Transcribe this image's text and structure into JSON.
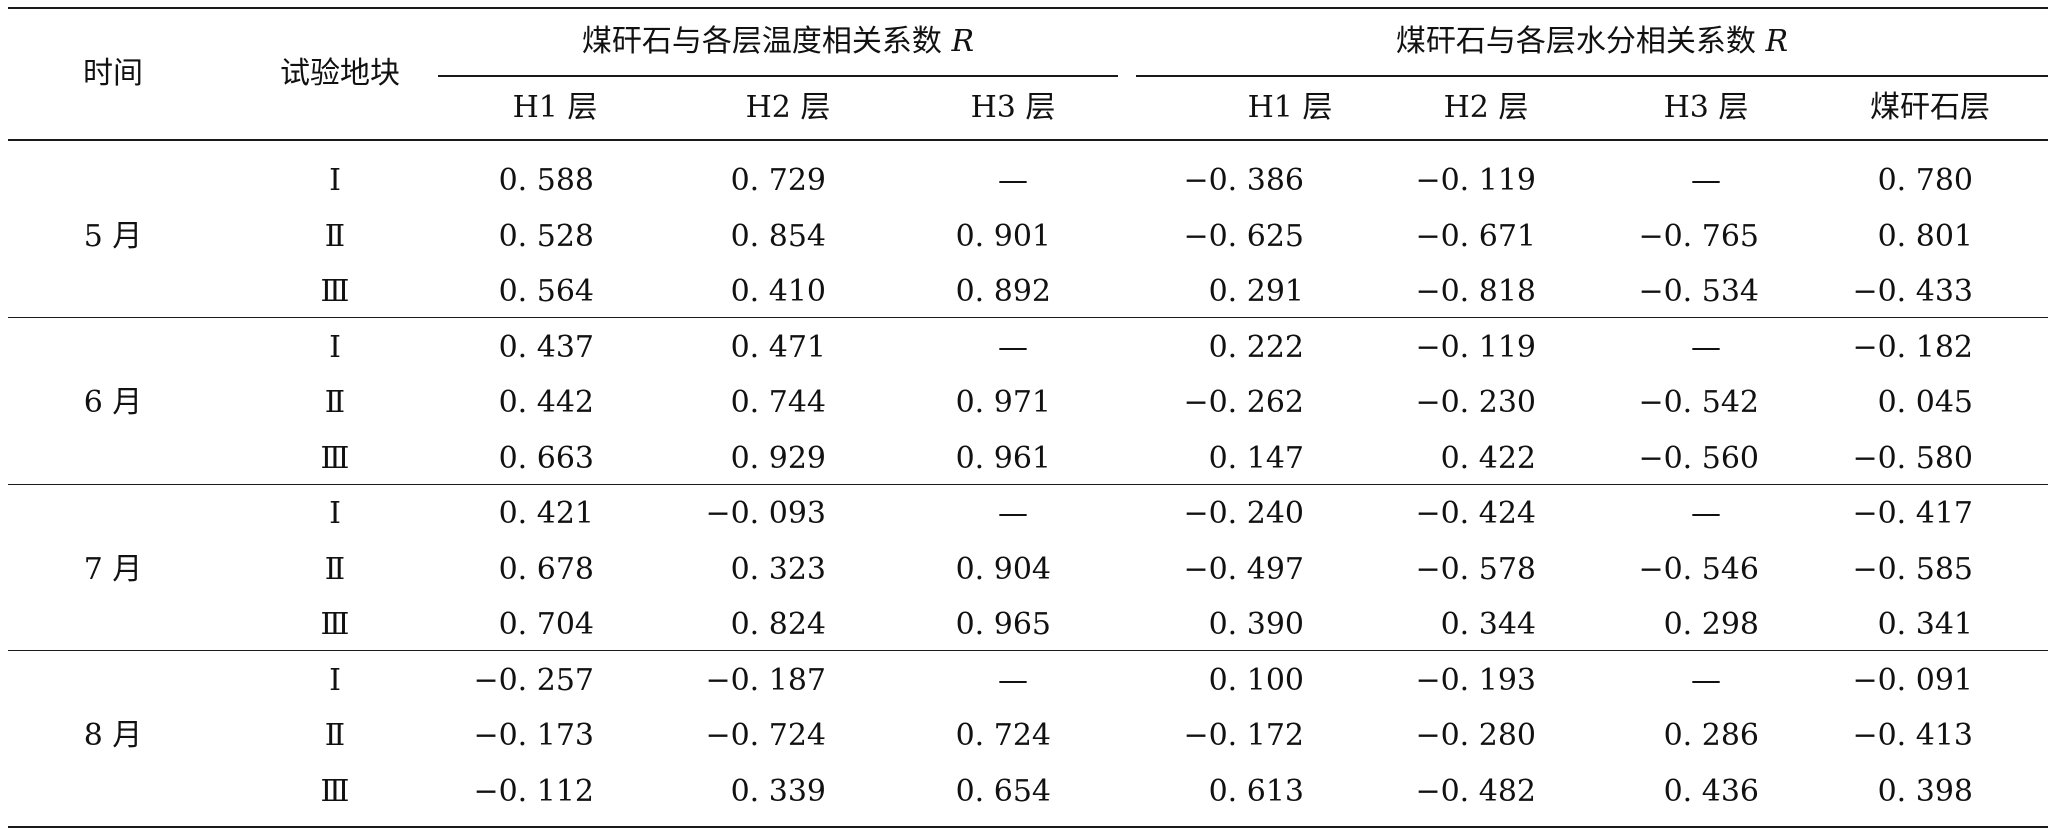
{
  "header": {
    "time": "时间",
    "plot": "试验地块",
    "temp_group": "煤矸石与各层温度相关系数",
    "water_group": "煤矸石与各层水分相关系数",
    "r_symbol": "R",
    "temp_cols": [
      "H1 层",
      "H2 层",
      "H3 层"
    ],
    "water_cols": [
      "H1 层",
      "H2 层",
      "H3 层",
      "煤矸石层"
    ]
  },
  "groups": [
    {
      "month": "5 月",
      "rows": [
        {
          "plot": "Ⅰ",
          "values": [
            "0. 588",
            "0. 729",
            "—",
            "−0. 386",
            "−0. 119",
            "—",
            "0. 780"
          ]
        },
        {
          "plot": "Ⅱ",
          "values": [
            "0. 528",
            "0. 854",
            "0. 901",
            "−0. 625",
            "−0. 671",
            "−0. 765",
            "0. 801"
          ]
        },
        {
          "plot": "Ⅲ",
          "values": [
            "0. 564",
            "0. 410",
            "0. 892",
            "0. 291",
            "−0. 818",
            "−0. 534",
            "−0. 433"
          ]
        }
      ]
    },
    {
      "month": "6 月",
      "rows": [
        {
          "plot": "Ⅰ",
          "values": [
            "0. 437",
            "0. 471",
            "—",
            "0. 222",
            "−0. 119",
            "—",
            "−0. 182"
          ]
        },
        {
          "plot": "Ⅱ",
          "values": [
            "0. 442",
            "0. 744",
            "0. 971",
            "−0. 262",
            "−0. 230",
            "−0. 542",
            "0. 045"
          ]
        },
        {
          "plot": "Ⅲ",
          "values": [
            "0. 663",
            "0. 929",
            "0. 961",
            "0. 147",
            "0. 422",
            "−0. 560",
            "−0. 580"
          ]
        }
      ]
    },
    {
      "month": "7 月",
      "rows": [
        {
          "plot": "Ⅰ",
          "values": [
            "0. 421",
            "−0. 093",
            "—",
            "−0. 240",
            "−0. 424",
            "—",
            "−0. 417"
          ]
        },
        {
          "plot": "Ⅱ",
          "values": [
            "0. 678",
            "0. 323",
            "0. 904",
            "−0. 497",
            "−0. 578",
            "−0. 546",
            "−0. 585"
          ]
        },
        {
          "plot": "Ⅲ",
          "values": [
            "0. 704",
            "0. 824",
            "0. 965",
            "0. 390",
            "0. 344",
            "0. 298",
            "0. 341"
          ]
        }
      ]
    },
    {
      "month": "8 月",
      "rows": [
        {
          "plot": "Ⅰ",
          "values": [
            "−0. 257",
            "−0. 187",
            "—",
            "0. 100",
            "−0. 193",
            "—",
            "−0. 091"
          ]
        },
        {
          "plot": "Ⅱ",
          "values": [
            "−0. 173",
            "−0. 724",
            "0. 724",
            "−0. 172",
            "−0. 280",
            "0. 286",
            "−0. 413"
          ]
        },
        {
          "plot": "Ⅲ",
          "values": [
            "−0. 112",
            "0. 339",
            "0. 654",
            "0. 613",
            "−0. 482",
            "0. 436",
            "0. 398"
          ]
        }
      ]
    }
  ]
}
